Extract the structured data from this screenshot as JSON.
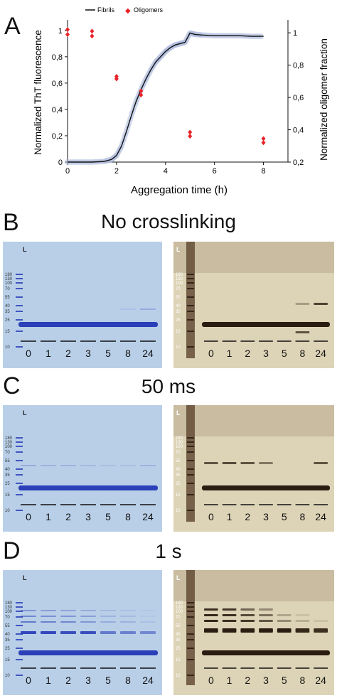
{
  "panels": {
    "A": {
      "letter": "A",
      "chart_data": {
        "type": "line",
        "title": "",
        "xlabel": "Aggregation time (h)",
        "ylabel_left": "Normalized ThT fluorescence",
        "ylabel_right": "Normalized oligomer fraction",
        "xlim": [
          0,
          9
        ],
        "ylim_left": [
          0,
          1.08
        ],
        "ylim_right": [
          0.2,
          1.08
        ],
        "x_ticks": [
          "0",
          "2",
          "4",
          "6",
          "8"
        ],
        "y_ticks_left": [
          "0",
          "0,2",
          "0,4",
          "0,6",
          "0,8",
          "1"
        ],
        "y_ticks_right": [
          "0,2",
          "0,4",
          "0,6",
          "0,8",
          "1"
        ],
        "legend": {
          "placement": "top",
          "entries": [
            "Fibrils",
            "Oligomers"
          ]
        },
        "series": [
          {
            "name": "Fibrils",
            "x": [
              0,
              0.5,
              1,
              1.5,
              1.8,
              2,
              2.2,
              2.4,
              2.6,
              2.8,
              3,
              3.2,
              3.4,
              3.6,
              3.8,
              4,
              4.2,
              4.4,
              4.6,
              4.8,
              5,
              5.2,
              5.5,
              6,
              6.5,
              7,
              7.5,
              8
            ],
            "y": [
              0,
              0,
              0,
              0.005,
              0.02,
              0.05,
              0.12,
              0.23,
              0.35,
              0.46,
              0.55,
              0.63,
              0.7,
              0.76,
              0.8,
              0.84,
              0.87,
              0.89,
              0.9,
              0.91,
              0.98,
              0.97,
              0.965,
              0.96,
              0.96,
              0.96,
              0.955,
              0.955
            ]
          },
          {
            "name": "Oligomers",
            "x": [
              0,
              0,
              1,
              1,
              2,
              2,
              3,
              3,
              5,
              5,
              8,
              8
            ],
            "y": [
              1.02,
              0.99,
              1.01,
              0.98,
              0.73,
              0.715,
              0.64,
              0.615,
              0.385,
              0.36,
              0.345,
              0.32
            ]
          }
        ]
      }
    },
    "B": {
      "letter": "B",
      "heading": "No crosslinking"
    },
    "C": {
      "letter": "C",
      "heading": "50 ms"
    },
    "D": {
      "letter": "D",
      "heading": "1 s"
    },
    "gels": {
      "ladder_label": "L",
      "ladder_values": [
        "180",
        "130",
        "100",
        "70",
        "55",
        "40",
        "35",
        "25",
        "15",
        "10"
      ],
      "lanes": [
        "0",
        "1",
        "2",
        "3",
        "5",
        "8",
        "24"
      ]
    },
    "colors": {
      "coomassie_bg": "#b9cfe8",
      "coomassie_band": "#2a3fb8",
      "silver_bg": "#ddd3b6",
      "silver_band": "#2a1c10",
      "fibril_line": "#111111",
      "fibril_points": "#b0bedf",
      "oligomer_points": "#e8232a"
    }
  }
}
